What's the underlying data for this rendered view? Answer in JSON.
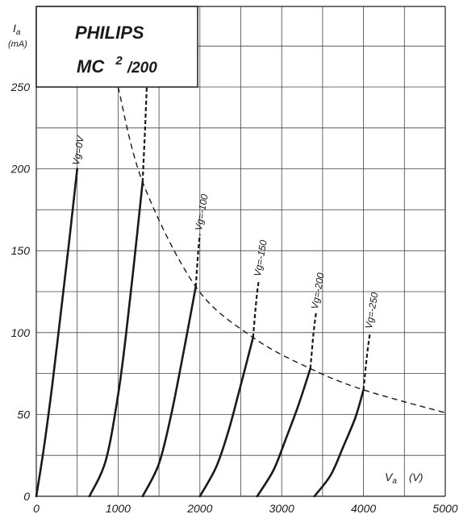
{
  "chart_data": {
    "type": "line",
    "title": "PHILIPS",
    "model_prefix": "MC",
    "model_superscript": "2",
    "model_suffix": "/200",
    "ylabel": "I",
    "ylabel_sub": "a",
    "yunit": "(mA)",
    "xlabel": "V",
    "xlabel_sub": "a",
    "xunit": "(V)",
    "xlim": [
      0,
      5000
    ],
    "ylim": [
      0,
      250
    ],
    "x_ticks": [
      0,
      1000,
      2000,
      3000,
      4000,
      5000
    ],
    "x_tick_labels": [
      "0",
      "1000",
      "2000",
      "3000",
      "4000",
      "5000"
    ],
    "y_ticks": [
      0,
      50,
      100,
      150,
      200,
      250
    ],
    "y_tick_labels": [
      "0",
      "50",
      "100",
      "150",
      "200",
      "250"
    ],
    "grid": true,
    "series": [
      {
        "name": "Vg=0V",
        "solid": [
          [
            0,
            0
          ],
          [
            100,
            32
          ],
          [
            200,
            70
          ],
          [
            300,
            112
          ],
          [
            400,
            155
          ],
          [
            500,
            200
          ]
        ],
        "dashed": []
      },
      {
        "name": "Vg=-50",
        "solid": [
          [
            650,
            0
          ],
          [
            850,
            22
          ],
          [
            1000,
            62
          ],
          [
            1100,
            100
          ],
          [
            1200,
            145
          ],
          [
            1300,
            192
          ]
        ],
        "dashed": [
          [
            1300,
            192
          ],
          [
            1330,
            225
          ],
          [
            1350,
            250
          ]
        ]
      },
      {
        "name": "Vg=-100",
        "solid": [
          [
            1300,
            0
          ],
          [
            1500,
            20
          ],
          [
            1650,
            50
          ],
          [
            1800,
            88
          ],
          [
            1950,
            128
          ]
        ],
        "dashed": [
          [
            1950,
            128
          ],
          [
            1980,
            150
          ],
          [
            2000,
            160
          ]
        ]
      },
      {
        "name": "Vg=-150",
        "solid": [
          [
            2000,
            0
          ],
          [
            2200,
            18
          ],
          [
            2350,
            40
          ],
          [
            2500,
            68
          ],
          [
            2650,
            97
          ]
        ],
        "dashed": [
          [
            2650,
            97
          ],
          [
            2690,
            120
          ],
          [
            2720,
            132
          ]
        ]
      },
      {
        "name": "Vg=-200",
        "solid": [
          [
            2700,
            0
          ],
          [
            2900,
            16
          ],
          [
            3050,
            35
          ],
          [
            3200,
            55
          ],
          [
            3350,
            78
          ]
        ],
        "dashed": [
          [
            3350,
            78
          ],
          [
            3390,
            100
          ],
          [
            3420,
            112
          ]
        ]
      },
      {
        "name": "Vg=-250",
        "solid": [
          [
            3400,
            0
          ],
          [
            3600,
            13
          ],
          [
            3750,
            30
          ],
          [
            3900,
            48
          ],
          [
            4000,
            65
          ]
        ],
        "dashed": [
          [
            4000,
            65
          ],
          [
            4040,
            85
          ],
          [
            4080,
            100
          ]
        ]
      }
    ],
    "curve_labels": [
      "Vg=0V",
      "Vg=-50",
      "Vg=-100",
      "Vg=-150",
      "Vg=-200",
      "Vg=-250"
    ],
    "dissipation_curve": [
      [
        1000,
        250
      ],
      [
        1300,
        192
      ],
      [
        1950,
        128
      ],
      [
        2650,
        97
      ],
      [
        3350,
        78
      ],
      [
        4000,
        65
      ],
      [
        5000,
        51
      ]
    ],
    "colors": {
      "ink": "#1a1a1a",
      "grid": "#444444",
      "paper": "#ffffff"
    }
  }
}
